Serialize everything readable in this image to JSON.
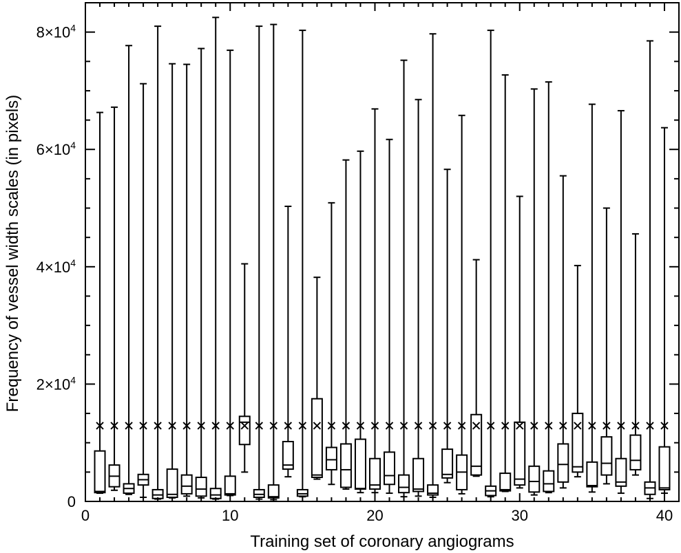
{
  "chart_data": {
    "type": "boxplot",
    "title": "",
    "xlabel": "Training set of coronary angiograms",
    "ylabel": "Frequency of vessel width scales (in pixels)",
    "xlim": [
      0,
      41
    ],
    "ylim": [
      0,
      85000
    ],
    "xticks": [
      {
        "value": 0,
        "label": "0"
      },
      {
        "value": 10,
        "label": "10"
      },
      {
        "value": 20,
        "label": "20"
      },
      {
        "value": 30,
        "label": "30"
      },
      {
        "value": 40,
        "label": "40"
      }
    ],
    "yticks": [
      {
        "value": 0,
        "label": "0",
        "exp": ""
      },
      {
        "value": 20000,
        "label": "2×10",
        "exp": "4"
      },
      {
        "value": 40000,
        "label": "4×10",
        "exp": "4"
      },
      {
        "value": 60000,
        "label": "6×10",
        "exp": "4"
      },
      {
        "value": 80000,
        "label": "8×10",
        "exp": "4"
      }
    ],
    "mean_marker": "×",
    "mean_value": 12900,
    "boxes": [
      {
        "x": 1,
        "min": 1400,
        "q1": 1500,
        "median": 1700,
        "q3": 8600,
        "max": 66300
      },
      {
        "x": 2,
        "min": 1900,
        "q1": 2500,
        "median": 4300,
        "q3": 6200,
        "max": 67200
      },
      {
        "x": 3,
        "min": 1200,
        "q1": 1400,
        "median": 2200,
        "q3": 3000,
        "max": 77700
      },
      {
        "x": 4,
        "min": 700,
        "q1": 2800,
        "median": 3700,
        "q3": 4600,
        "max": 71200
      },
      {
        "x": 5,
        "min": 400,
        "q1": 500,
        "median": 1100,
        "q3": 2000,
        "max": 81000
      },
      {
        "x": 6,
        "min": 600,
        "q1": 700,
        "median": 1200,
        "q3": 5500,
        "max": 74600
      },
      {
        "x": 7,
        "min": 900,
        "q1": 1300,
        "median": 2600,
        "q3": 4500,
        "max": 74500
      },
      {
        "x": 8,
        "min": 600,
        "q1": 900,
        "median": 2100,
        "q3": 4100,
        "max": 77200
      },
      {
        "x": 9,
        "min": 400,
        "q1": 500,
        "median": 1100,
        "q3": 2200,
        "max": 82500
      },
      {
        "x": 10,
        "min": 1000,
        "q1": 1100,
        "median": 1300,
        "q3": 4300,
        "max": 76900
      },
      {
        "x": 11,
        "min": 5000,
        "q1": 9700,
        "median": 13500,
        "q3": 14500,
        "max": 40500
      },
      {
        "x": 12,
        "min": 400,
        "q1": 700,
        "median": 1200,
        "q3": 2000,
        "max": 81000
      },
      {
        "x": 13,
        "min": 300,
        "q1": 600,
        "median": 800,
        "q3": 2800,
        "max": 81300
      },
      {
        "x": 14,
        "min": 4200,
        "q1": 5500,
        "median": 6200,
        "q3": 10200,
        "max": 50300
      },
      {
        "x": 15,
        "min": 800,
        "q1": 900,
        "median": 1300,
        "q3": 2000,
        "max": 80300
      },
      {
        "x": 16,
        "min": 3800,
        "q1": 4100,
        "median": 4500,
        "q3": 17500,
        "max": 38200
      },
      {
        "x": 17,
        "min": 2900,
        "q1": 5400,
        "median": 7100,
        "q3": 9200,
        "max": 50900
      },
      {
        "x": 18,
        "min": 2100,
        "q1": 2400,
        "median": 5400,
        "q3": 9800,
        "max": 58200
      },
      {
        "x": 19,
        "min": 1500,
        "q1": 2100,
        "median": 2200,
        "q3": 10600,
        "max": 59700
      },
      {
        "x": 20,
        "min": 1500,
        "q1": 2100,
        "median": 2800,
        "q3": 7300,
        "max": 66900
      },
      {
        "x": 21,
        "min": 1400,
        "q1": 2900,
        "median": 4400,
        "q3": 8400,
        "max": 61700
      },
      {
        "x": 22,
        "min": 800,
        "q1": 1500,
        "median": 2400,
        "q3": 4500,
        "max": 75200
      },
      {
        "x": 23,
        "min": 900,
        "q1": 1700,
        "median": 2100,
        "q3": 7300,
        "max": 68500
      },
      {
        "x": 24,
        "min": 700,
        "q1": 1100,
        "median": 1400,
        "q3": 2800,
        "max": 79700
      },
      {
        "x": 25,
        "min": 3200,
        "q1": 4000,
        "median": 4600,
        "q3": 8900,
        "max": 56600
      },
      {
        "x": 26,
        "min": 1300,
        "q1": 2000,
        "median": 5000,
        "q3": 7900,
        "max": 65800
      },
      {
        "x": 27,
        "min": 4300,
        "q1": 4500,
        "median": 6000,
        "q3": 14800,
        "max": 41200
      },
      {
        "x": 28,
        "min": 800,
        "q1": 1000,
        "median": 1800,
        "q3": 2600,
        "max": 80300
      },
      {
        "x": 29,
        "min": 1700,
        "q1": 1800,
        "median": 2000,
        "q3": 4800,
        "max": 72700
      },
      {
        "x": 30,
        "min": 2300,
        "q1": 2800,
        "median": 3800,
        "q3": 13500,
        "max": 52000
      },
      {
        "x": 31,
        "min": 1100,
        "q1": 1600,
        "median": 3400,
        "q3": 6000,
        "max": 70300
      },
      {
        "x": 32,
        "min": 1500,
        "q1": 1700,
        "median": 3000,
        "q3": 5200,
        "max": 71500
      },
      {
        "x": 33,
        "min": 2300,
        "q1": 3300,
        "median": 6300,
        "q3": 9800,
        "max": 55500
      },
      {
        "x": 34,
        "min": 4200,
        "q1": 5000,
        "median": 5900,
        "q3": 15000,
        "max": 40200
      },
      {
        "x": 35,
        "min": 1600,
        "q1": 2500,
        "median": 2700,
        "q3": 6700,
        "max": 67700
      },
      {
        "x": 36,
        "min": 3000,
        "q1": 4500,
        "median": 6500,
        "q3": 11000,
        "max": 50000
      },
      {
        "x": 37,
        "min": 1400,
        "q1": 2600,
        "median": 3300,
        "q3": 7300,
        "max": 66600
      },
      {
        "x": 38,
        "min": 4500,
        "q1": 5400,
        "median": 7000,
        "q3": 11300,
        "max": 45600
      },
      {
        "x": 39,
        "min": 500,
        "q1": 1200,
        "median": 2300,
        "q3": 3300,
        "max": 78500
      },
      {
        "x": 40,
        "min": 1400,
        "q1": 2000,
        "median": 2300,
        "q3": 9300,
        "max": 63700
      }
    ]
  }
}
